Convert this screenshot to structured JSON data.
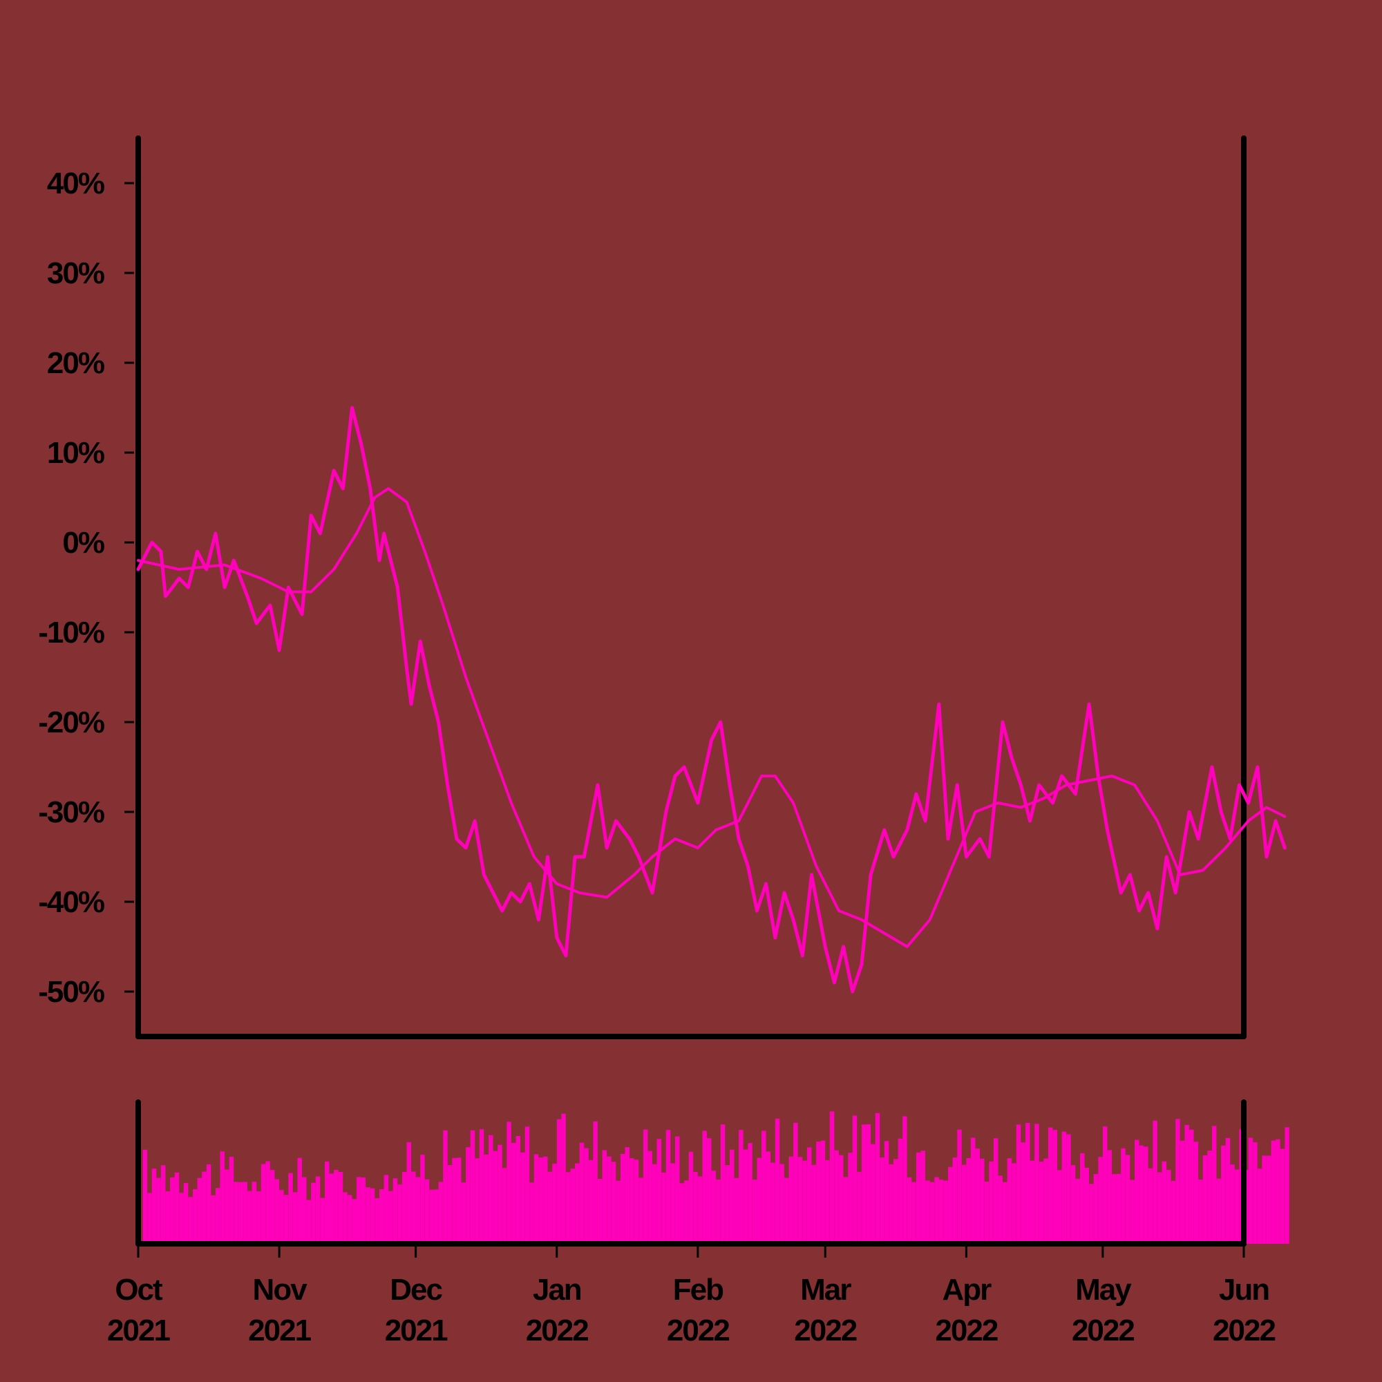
{
  "colors": {
    "background": "#853134",
    "series": "#ff00bb",
    "axis": "#000000"
  },
  "chart_data": [
    {
      "type": "line",
      "panel": "price",
      "y_unit": "percent",
      "ylim": [
        -55,
        45
      ],
      "y_ticks": [
        40,
        30,
        20,
        10,
        0,
        -10,
        -20,
        -30,
        -40,
        -50
      ],
      "y_tick_labels": [
        "40%",
        "30%",
        "20%",
        "10%",
        "0%",
        "-10%",
        "-20%",
        "-30%",
        "-40%",
        "-50%"
      ],
      "x_range": [
        "2021-10-01",
        "2022-06-01"
      ],
      "grid": false,
      "legend": "none",
      "series": [
        {
          "style": "thick-jagged",
          "points": [
            [
              "2021-10-01",
              -3
            ],
            [
              "2021-10-04",
              0
            ],
            [
              "2021-10-06",
              -1
            ],
            [
              "2021-10-07",
              -6
            ],
            [
              "2021-10-10",
              -4
            ],
            [
              "2021-10-12",
              -5
            ],
            [
              "2021-10-14",
              -1
            ],
            [
              "2021-10-16",
              -3
            ],
            [
              "2021-10-18",
              1
            ],
            [
              "2021-10-20",
              -5
            ],
            [
              "2021-10-22",
              -2
            ],
            [
              "2021-10-25",
              -6
            ],
            [
              "2021-10-27",
              -9
            ],
            [
              "2021-10-30",
              -7
            ],
            [
              "2021-11-01",
              -12
            ],
            [
              "2021-11-03",
              -5
            ],
            [
              "2021-11-06",
              -8
            ],
            [
              "2021-11-08",
              3
            ],
            [
              "2021-11-10",
              1
            ],
            [
              "2021-11-13",
              8
            ],
            [
              "2021-11-15",
              6
            ],
            [
              "2021-11-17",
              15
            ],
            [
              "2021-11-19",
              11
            ],
            [
              "2021-11-21",
              6
            ],
            [
              "2021-11-23",
              -2
            ],
            [
              "2021-11-24",
              1
            ],
            [
              "2021-11-27",
              -5
            ],
            [
              "2021-11-29",
              -14
            ],
            [
              "2021-11-30",
              -18
            ],
            [
              "2021-12-02",
              -11
            ],
            [
              "2021-12-04",
              -16
            ],
            [
              "2021-12-06",
              -20
            ],
            [
              "2021-12-08",
              -27
            ],
            [
              "2021-12-10",
              -33
            ],
            [
              "2021-12-12",
              -34
            ],
            [
              "2021-12-14",
              -31
            ],
            [
              "2021-12-16",
              -37
            ],
            [
              "2021-12-18",
              -39
            ],
            [
              "2021-12-20",
              -41
            ],
            [
              "2021-12-22",
              -39
            ],
            [
              "2021-12-24",
              -40
            ],
            [
              "2021-12-26",
              -38
            ],
            [
              "2021-12-28",
              -42
            ],
            [
              "2021-12-30",
              -35
            ],
            [
              "2022-01-01",
              -44
            ],
            [
              "2022-01-03",
              -46
            ],
            [
              "2022-01-05",
              -35
            ],
            [
              "2022-01-07",
              -35
            ],
            [
              "2022-01-10",
              -27
            ],
            [
              "2022-01-12",
              -34
            ],
            [
              "2022-01-14",
              -31
            ],
            [
              "2022-01-17",
              -33
            ],
            [
              "2022-01-19",
              -35
            ],
            [
              "2022-01-22",
              -39
            ],
            [
              "2022-01-25",
              -30
            ],
            [
              "2022-01-27",
              -26
            ],
            [
              "2022-01-29",
              -25
            ],
            [
              "2022-02-01",
              -29
            ],
            [
              "2022-02-04",
              -22
            ],
            [
              "2022-02-06",
              -20
            ],
            [
              "2022-02-08",
              -27
            ],
            [
              "2022-02-10",
              -33
            ],
            [
              "2022-02-12",
              -36
            ],
            [
              "2022-02-14",
              -41
            ],
            [
              "2022-02-16",
              -38
            ],
            [
              "2022-02-18",
              -44
            ],
            [
              "2022-02-20",
              -39
            ],
            [
              "2022-02-22",
              -42
            ],
            [
              "2022-02-24",
              -46
            ],
            [
              "2022-02-26",
              -37
            ],
            [
              "2022-03-01",
              -45
            ],
            [
              "2022-03-03",
              -49
            ],
            [
              "2022-03-05",
              -45
            ],
            [
              "2022-03-07",
              -50
            ],
            [
              "2022-03-09",
              -47
            ],
            [
              "2022-03-11",
              -37
            ],
            [
              "2022-03-14",
              -32
            ],
            [
              "2022-03-16",
              -35
            ],
            [
              "2022-03-19",
              -32
            ],
            [
              "2022-03-21",
              -28
            ],
            [
              "2022-03-23",
              -31
            ],
            [
              "2022-03-26",
              -18
            ],
            [
              "2022-03-28",
              -33
            ],
            [
              "2022-03-30",
              -27
            ],
            [
              "2022-04-01",
              -35
            ],
            [
              "2022-04-04",
              -33
            ],
            [
              "2022-04-06",
              -35
            ],
            [
              "2022-04-09",
              -20
            ],
            [
              "2022-04-11",
              -24
            ],
            [
              "2022-04-13",
              -27
            ],
            [
              "2022-04-15",
              -31
            ],
            [
              "2022-04-17",
              -27
            ],
            [
              "2022-04-20",
              -29
            ],
            [
              "2022-04-22",
              -26
            ],
            [
              "2022-04-25",
              -28
            ],
            [
              "2022-04-28",
              -18
            ],
            [
              "2022-04-30",
              -26
            ],
            [
              "2022-05-02",
              -32
            ],
            [
              "2022-05-05",
              -39
            ],
            [
              "2022-05-07",
              -37
            ],
            [
              "2022-05-09",
              -41
            ],
            [
              "2022-05-11",
              -39
            ],
            [
              "2022-05-13",
              -43
            ],
            [
              "2022-05-15",
              -35
            ],
            [
              "2022-05-17",
              -39
            ],
            [
              "2022-05-20",
              -30
            ],
            [
              "2022-05-22",
              -33
            ],
            [
              "2022-05-25",
              -25
            ],
            [
              "2022-05-27",
              -30
            ],
            [
              "2022-05-29",
              -33
            ],
            [
              "2022-05-31",
              -27
            ],
            [
              "2022-06-02",
              -29
            ],
            [
              "2022-06-04",
              -25
            ],
            [
              "2022-06-06",
              -35
            ],
            [
              "2022-06-08",
              -31
            ],
            [
              "2022-06-10",
              -34
            ]
          ]
        },
        {
          "style": "smooth",
          "points": [
            [
              "2021-10-01",
              -2
            ],
            [
              "2021-10-10",
              -3
            ],
            [
              "2021-10-20",
              -2.5
            ],
            [
              "2021-10-28",
              -4
            ],
            [
              "2021-11-03",
              -5.5
            ],
            [
              "2021-11-08",
              -5.5
            ],
            [
              "2021-11-13",
              -3
            ],
            [
              "2021-11-18",
              1
            ],
            [
              "2021-11-22",
              5
            ],
            [
              "2021-11-25",
              6
            ],
            [
              "2021-11-29",
              4.5
            ],
            [
              "2021-12-03",
              -1
            ],
            [
              "2021-12-07",
              -7
            ],
            [
              "2021-12-12",
              -15
            ],
            [
              "2021-12-17",
              -22
            ],
            [
              "2021-12-22",
              -29
            ],
            [
              "2021-12-27",
              -35
            ],
            [
              "2022-01-01",
              -38
            ],
            [
              "2022-01-06",
              -39
            ],
            [
              "2022-01-12",
              -39.5
            ],
            [
              "2022-01-18",
              -37
            ],
            [
              "2022-01-22",
              -35
            ],
            [
              "2022-01-27",
              -33
            ],
            [
              "2022-02-01",
              -34
            ],
            [
              "2022-02-05",
              -32
            ],
            [
              "2022-02-10",
              -31
            ],
            [
              "2022-02-15",
              -26
            ],
            [
              "2022-02-18",
              -26
            ],
            [
              "2022-02-22",
              -29
            ],
            [
              "2022-02-27",
              -36
            ],
            [
              "2022-03-04",
              -41
            ],
            [
              "2022-03-09",
              -42
            ],
            [
              "2022-03-14",
              -43.5
            ],
            [
              "2022-03-19",
              -45
            ],
            [
              "2022-03-24",
              -42
            ],
            [
              "2022-03-29",
              -36
            ],
            [
              "2022-04-03",
              -30
            ],
            [
              "2022-04-08",
              -29
            ],
            [
              "2022-04-13",
              -29.5
            ],
            [
              "2022-04-18",
              -28.5
            ],
            [
              "2022-04-23",
              -27
            ],
            [
              "2022-04-28",
              -26.5
            ],
            [
              "2022-05-03",
              -26
            ],
            [
              "2022-05-08",
              -27
            ],
            [
              "2022-05-13",
              -31
            ],
            [
              "2022-05-18",
              -37
            ],
            [
              "2022-05-23",
              -36.5
            ],
            [
              "2022-05-28",
              -34
            ],
            [
              "2022-06-02",
              -31
            ],
            [
              "2022-06-06",
              -29.5
            ],
            [
              "2022-06-10",
              -30.5
            ]
          ]
        }
      ]
    },
    {
      "type": "bar",
      "panel": "volume",
      "y_ticks": [],
      "bar_baseline": 0.56,
      "bar_spread": 0.62,
      "bar_noise_seed": 17,
      "volume_envelope": [
        [
          "2021-10-01",
          0.6
        ],
        [
          "2021-11-01",
          0.52
        ],
        [
          "2021-11-20",
          0.55
        ],
        [
          "2021-12-15",
          0.75
        ],
        [
          "2022-01-10",
          0.8
        ],
        [
          "2022-02-01",
          0.72
        ],
        [
          "2022-02-20",
          0.83
        ],
        [
          "2022-03-10",
          0.8
        ],
        [
          "2022-04-01",
          0.74
        ],
        [
          "2022-05-01",
          0.72
        ],
        [
          "2022-05-15",
          0.76
        ],
        [
          "2022-06-10",
          0.7
        ]
      ]
    }
  ],
  "x_axis": {
    "ticks": [
      {
        "date": "2021-10-01",
        "month": "Oct",
        "year": "2021"
      },
      {
        "date": "2021-11-01",
        "month": "Nov",
        "year": "2021"
      },
      {
        "date": "2021-12-01",
        "month": "Dec",
        "year": "2021"
      },
      {
        "date": "2022-01-01",
        "month": "Jan",
        "year": "2022"
      },
      {
        "date": "2022-02-01",
        "month": "Feb",
        "year": "2022"
      },
      {
        "date": "2022-03-01",
        "month": "Mar",
        "year": "2022"
      },
      {
        "date": "2022-04-01",
        "month": "Apr",
        "year": "2022"
      },
      {
        "date": "2022-05-01",
        "month": "May",
        "year": "2022"
      },
      {
        "date": "2022-06-01",
        "month": "Jun",
        "year": "2022"
      }
    ]
  }
}
